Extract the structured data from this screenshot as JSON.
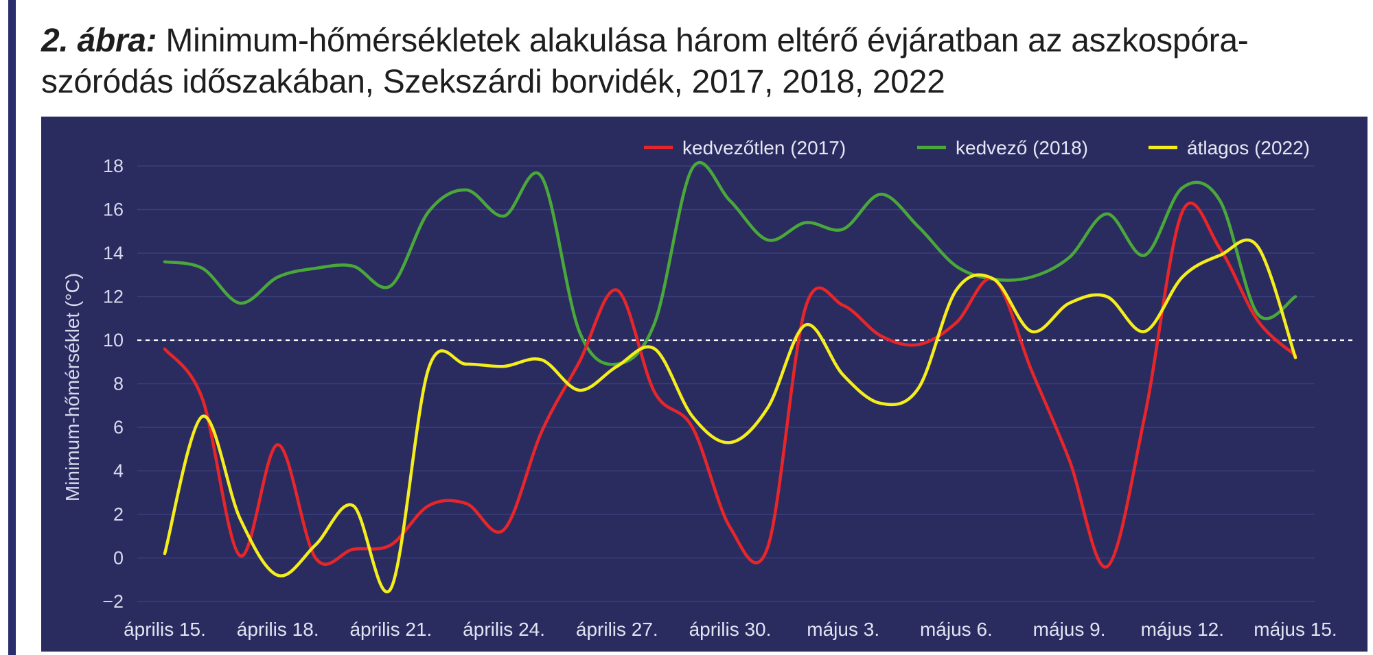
{
  "figure": {
    "label": "2. ábra:",
    "title": "Minimum-hőmérsékletek alakulása három eltérő évjáratban az aszkospóra-szóródás időszakában, Szekszárdi borvidék, 2017, 2018, 2022"
  },
  "colors": {
    "background": "#2a2c60",
    "accent_bar": "#2a2d6b",
    "series_2017": "#e8262a",
    "series_2018": "#4aa83a",
    "series_2022": "#f5ee1c",
    "reference_line": "#ffffff"
  },
  "chart_data": {
    "type": "line",
    "ylabel": "Minimum-hőmérséklet (°C)",
    "xlabel": "",
    "ylim": [
      -2,
      18
    ],
    "yticks": [
      -2,
      0,
      2,
      4,
      6,
      8,
      10,
      12,
      14,
      16,
      18
    ],
    "y_tick_labels": [
      "−2",
      "0",
      "2",
      "4",
      "6",
      "8",
      "10",
      "12",
      "14",
      "16",
      "18"
    ],
    "grid": true,
    "reference_line": 10,
    "legend_position": "top-right",
    "x_tick_labels": [
      "április 15.",
      "április 18.",
      "április 21.",
      "április 24.",
      "április 27.",
      "április 30.",
      "május 3.",
      "május 6.",
      "május 9.",
      "május 12.",
      "május 15."
    ],
    "x_tick_every": 3,
    "series": [
      {
        "name": "kedvezőtlen (2017)",
        "color": "#e8262a",
        "values": [
          9.6,
          7.3,
          0.1,
          5.2,
          0.0,
          0.4,
          0.6,
          2.4,
          2.5,
          1.3,
          5.8,
          9.0,
          12.3,
          7.6,
          6.0,
          1.4,
          0.5,
          11.5,
          11.6,
          10.2,
          9.8,
          10.8,
          12.8,
          8.6,
          4.5,
          -0.4,
          6.5,
          15.9,
          14.2,
          10.9,
          9.3
        ]
      },
      {
        "name": "kedvező (2018)",
        "color": "#4aa83a",
        "values": [
          13.6,
          13.3,
          11.7,
          12.9,
          13.3,
          13.4,
          12.5,
          15.9,
          16.9,
          15.7,
          17.5,
          10.4,
          8.9,
          10.8,
          17.9,
          16.4,
          14.6,
          15.4,
          15.1,
          16.7,
          15.2,
          13.4,
          12.8,
          12.9,
          13.8,
          15.8,
          13.9,
          17.0,
          16.4,
          11.2,
          12.0
        ]
      },
      {
        "name": "átlagos (2022)",
        "color": "#f5ee1c",
        "values": [
          0.2,
          6.5,
          1.8,
          -0.8,
          0.6,
          2.4,
          -1.4,
          8.7,
          8.9,
          8.8,
          9.1,
          7.7,
          8.8,
          9.6,
          6.5,
          5.3,
          6.9,
          10.7,
          8.4,
          7.1,
          7.8,
          12.3,
          12.8,
          10.4,
          11.7,
          12.0,
          10.4,
          12.9,
          13.9,
          14.3,
          9.2
        ]
      }
    ]
  }
}
